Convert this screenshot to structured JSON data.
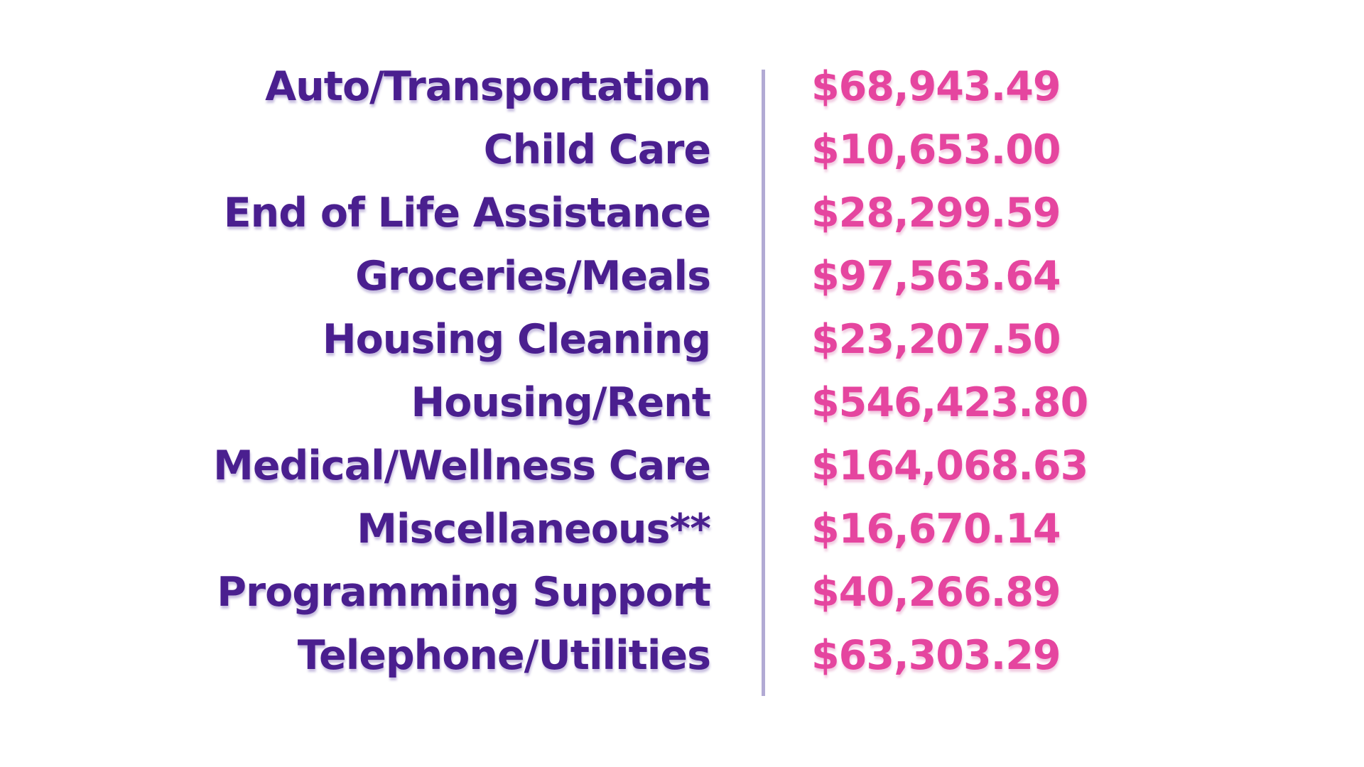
{
  "table": {
    "rows": [
      {
        "label": "Auto/Transportation",
        "value": "$68,943.49"
      },
      {
        "label": "Child Care",
        "value": "$10,653.00"
      },
      {
        "label": "End of Life Assistance",
        "value": "$28,299.59"
      },
      {
        "label": "Groceries/Meals",
        "value": "$97,563.64"
      },
      {
        "label": "Housing Cleaning",
        "value": "$23,207.50"
      },
      {
        "label": "Housing/Rent",
        "value": "$546,423.80"
      },
      {
        "label": "Medical/Wellness Care",
        "value": "$164,068.63"
      },
      {
        "label": "Miscellaneous**",
        "value": "$16,670.14"
      },
      {
        "label": "Programming Support",
        "value": "$40,266.89"
      },
      {
        "label": "Telephone/Utilities",
        "value": "$63,303.29"
      }
    ]
  },
  "colors": {
    "label": "#4a1f8f",
    "value": "#e5459f",
    "divider": "#b2aad4",
    "background": "#ffffff"
  },
  "chart_data": {
    "type": "table",
    "categories": [
      "Auto/Transportation",
      "Child Care",
      "End of Life Assistance",
      "Groceries/Meals",
      "Housing Cleaning",
      "Housing/Rent",
      "Medical/Wellness Care",
      "Miscellaneous**",
      "Programming Support",
      "Telephone/Utilities"
    ],
    "values": [
      68943.49,
      10653.0,
      28299.59,
      97563.64,
      23207.5,
      546423.8,
      164068.63,
      16670.14,
      40266.89,
      63303.29
    ],
    "value_format": "USD currency, two decimals",
    "title": "",
    "legend": "none",
    "layout": "two-column list, labels right-aligned, values left-aligned, vertical divider between columns"
  }
}
